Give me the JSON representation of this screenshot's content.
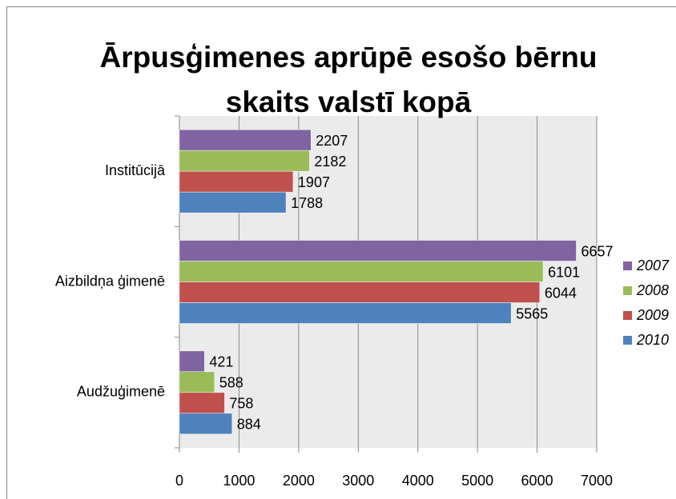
{
  "chart_data": {
    "type": "hbar",
    "title": "Ārpusģimenes aprūpē esošo bērnu skaits valstī kopā",
    "categories": [
      "Audžuģimenē",
      "Aizbildņa ģimenē",
      "Institūcijā"
    ],
    "series": [
      {
        "name": "2007",
        "color": "#8064a2",
        "values": [
          421,
          6657,
          2207
        ]
      },
      {
        "name": "2008",
        "color": "#9bbb59",
        "values": [
          588,
          6101,
          2182
        ]
      },
      {
        "name": "2009",
        "color": "#c0504d",
        "values": [
          758,
          6044,
          1907
        ]
      },
      {
        "name": "2010",
        "color": "#4f81bd",
        "values": [
          884,
          5565,
          1788
        ]
      }
    ],
    "xlim": [
      0,
      7000
    ],
    "xticks": [
      0,
      1000,
      2000,
      3000,
      4000,
      5000,
      6000,
      7000
    ],
    "grid": true,
    "legend": "right"
  }
}
